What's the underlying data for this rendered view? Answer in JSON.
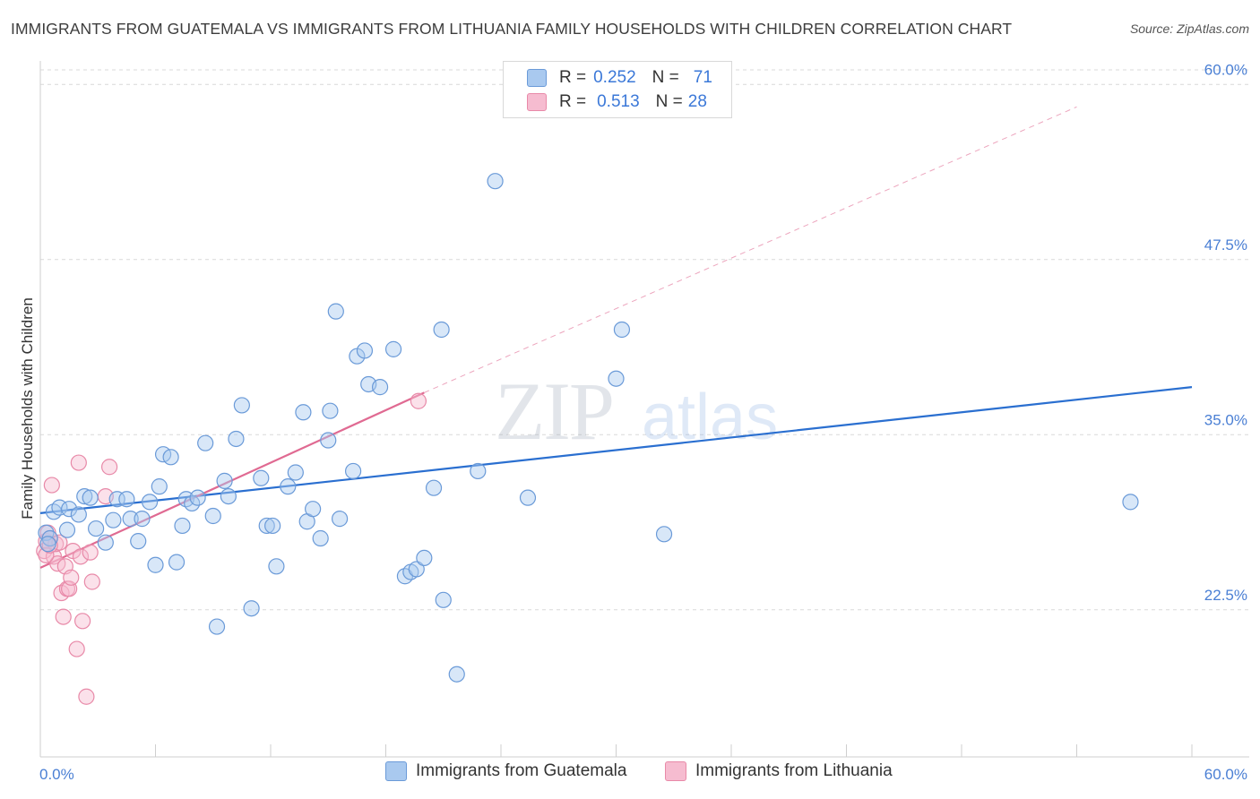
{
  "header": {
    "title": "IMMIGRANTS FROM GUATEMALA VS IMMIGRANTS FROM LITHUANIA FAMILY HOUSEHOLDS WITH CHILDREN CORRELATION CHART",
    "source": "Source: ZipAtlas.com"
  },
  "watermark": {
    "zip": "ZIP",
    "atlas": "atlas"
  },
  "legend": {
    "r_label": "R =",
    "n_label": "N =",
    "series": [
      {
        "r": "0.252",
        "n": "71"
      },
      {
        "r": "0.513",
        "n": "28"
      }
    ]
  },
  "colors": {
    "guatemala_fill": "#a9c9ef",
    "guatemala_stroke": "#6a9ad8",
    "guatemala_line": "#2a6fd0",
    "lithuania_fill": "#f6bcd0",
    "lithuania_stroke": "#e889a8",
    "lithuania_line": "#e06a92",
    "axis_text": "#4a7fd4"
  },
  "chart_data": {
    "type": "scatter",
    "title": "IMMIGRANTS FROM GUATEMALA VS IMMIGRANTS FROM LITHUANIA FAMILY HOUSEHOLDS WITH CHILDREN CORRELATION CHART",
    "xlabel": "",
    "ylabel": "Family Households with Children",
    "xlim": [
      0,
      60
    ],
    "ylim": [
      12,
      62
    ],
    "x_tick_labels": [
      "0.0%",
      "60.0%"
    ],
    "y_ticks": [
      22.5,
      35.0,
      47.5,
      60.0
    ],
    "y_tick_labels": [
      "22.5%",
      "35.0%",
      "47.5%",
      "60.0%"
    ],
    "grid": true,
    "legend_position": "top-center",
    "series": [
      {
        "name": "Immigrants from Guatemala",
        "r": 0.252,
        "n": 71,
        "trend": {
          "x0": 0,
          "y0": 29.4,
          "x1": 60,
          "y1": 38.4
        },
        "points": [
          [
            0.3,
            28.0
          ],
          [
            0.5,
            27.6
          ],
          [
            0.7,
            29.5
          ],
          [
            1.0,
            29.8
          ],
          [
            1.4,
            28.2
          ],
          [
            1.5,
            29.7
          ],
          [
            2.0,
            29.3
          ],
          [
            2.3,
            30.6
          ],
          [
            2.6,
            30.5
          ],
          [
            2.9,
            28.3
          ],
          [
            3.4,
            27.3
          ],
          [
            3.8,
            28.9
          ],
          [
            4.0,
            30.4
          ],
          [
            4.5,
            30.4
          ],
          [
            4.7,
            29.0
          ],
          [
            5.1,
            27.4
          ],
          [
            5.3,
            29.0
          ],
          [
            5.7,
            30.2
          ],
          [
            6.0,
            25.7
          ],
          [
            6.2,
            31.3
          ],
          [
            6.4,
            33.6
          ],
          [
            6.8,
            33.4
          ],
          [
            7.1,
            25.9
          ],
          [
            7.4,
            28.5
          ],
          [
            7.6,
            30.4
          ],
          [
            7.9,
            30.1
          ],
          [
            8.2,
            30.5
          ],
          [
            8.6,
            34.4
          ],
          [
            9.0,
            29.2
          ],
          [
            9.2,
            21.3
          ],
          [
            9.6,
            31.7
          ],
          [
            9.8,
            30.6
          ],
          [
            10.2,
            34.7
          ],
          [
            10.5,
            37.1
          ],
          [
            11.0,
            22.6
          ],
          [
            11.5,
            31.9
          ],
          [
            11.8,
            28.5
          ],
          [
            12.1,
            28.5
          ],
          [
            12.3,
            25.6
          ],
          [
            12.9,
            31.3
          ],
          [
            13.3,
            32.3
          ],
          [
            13.7,
            36.6
          ],
          [
            13.9,
            28.8
          ],
          [
            14.2,
            29.7
          ],
          [
            14.6,
            27.6
          ],
          [
            15.0,
            34.6
          ],
          [
            15.1,
            36.7
          ],
          [
            15.4,
            43.8
          ],
          [
            15.6,
            29.0
          ],
          [
            16.3,
            32.4
          ],
          [
            16.5,
            40.6
          ],
          [
            16.9,
            41.0
          ],
          [
            17.1,
            38.6
          ],
          [
            17.7,
            38.4
          ],
          [
            18.4,
            41.1
          ],
          [
            19.0,
            24.9
          ],
          [
            19.3,
            25.2
          ],
          [
            19.6,
            25.4
          ],
          [
            20.0,
            26.2
          ],
          [
            20.5,
            31.2
          ],
          [
            20.9,
            42.5
          ],
          [
            21.0,
            23.2
          ],
          [
            21.7,
            17.9
          ],
          [
            22.8,
            32.4
          ],
          [
            23.7,
            53.1
          ],
          [
            25.4,
            30.5
          ],
          [
            30.0,
            39.0
          ],
          [
            30.3,
            42.5
          ],
          [
            32.5,
            27.9
          ],
          [
            56.8,
            30.2
          ],
          [
            0.4,
            27.2
          ]
        ]
      },
      {
        "name": "Immigrants from Lithuania",
        "r": 0.513,
        "n": 28,
        "trend": {
          "x0": 0,
          "y0": 25.5,
          "x1": 20,
          "y1": 38.0
        },
        "trend_extended": {
          "x0": 20,
          "y0": 38.0,
          "x1": 60,
          "y1": 62.0
        },
        "points": [
          [
            0.2,
            26.7
          ],
          [
            0.3,
            27.4
          ],
          [
            0.4,
            28.0
          ],
          [
            0.5,
            27.6
          ],
          [
            0.6,
            31.4
          ],
          [
            0.7,
            26.3
          ],
          [
            0.8,
            27.2
          ],
          [
            0.9,
            25.8
          ],
          [
            1.0,
            27.3
          ],
          [
            1.1,
            23.7
          ],
          [
            1.2,
            22.0
          ],
          [
            1.3,
            25.6
          ],
          [
            1.4,
            24.0
          ],
          [
            1.5,
            24.0
          ],
          [
            1.6,
            24.8
          ],
          [
            1.7,
            26.7
          ],
          [
            1.9,
            19.7
          ],
          [
            2.0,
            33.0
          ],
          [
            2.1,
            26.3
          ],
          [
            2.2,
            21.7
          ],
          [
            2.4,
            16.3
          ],
          [
            2.6,
            26.6
          ],
          [
            2.7,
            24.5
          ],
          [
            3.4,
            30.6
          ],
          [
            3.6,
            32.7
          ],
          [
            0.3,
            26.4
          ],
          [
            0.5,
            27.1
          ],
          [
            19.7,
            37.4
          ]
        ]
      }
    ]
  },
  "bottom_legend": [
    {
      "label": "Immigrants from Guatemala"
    },
    {
      "label": "Immigrants from Lithuania"
    }
  ]
}
